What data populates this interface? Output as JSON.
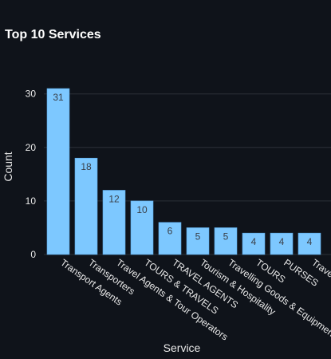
{
  "chart_data": {
    "type": "bar",
    "title": "Top 10 Services",
    "xlabel": "Service",
    "ylabel": "Count",
    "categories": [
      "Transport Agents",
      "Transporters",
      "Travel Agents & Tour Operators",
      "TOURS & TRAVELS",
      "TRAVEL AGENTS",
      "Tourism & Hospitality",
      "Travelling Goods & Equipment",
      "TOURS",
      "PURSES",
      "Travel"
    ],
    "values": [
      31,
      18,
      12,
      10,
      6,
      5,
      5,
      4,
      4,
      4
    ],
    "ylim": [
      0,
      31
    ],
    "yticks": [
      0,
      10,
      20,
      30
    ],
    "grid": true,
    "data_labels": true,
    "colors": {
      "background": "#0f131a",
      "bar": "#7dc8ff",
      "bar_edge": "#5aa8e6",
      "grid": "#2b3038",
      "text": "#e8e8e8",
      "bar_label": "#3a3f47"
    }
  }
}
